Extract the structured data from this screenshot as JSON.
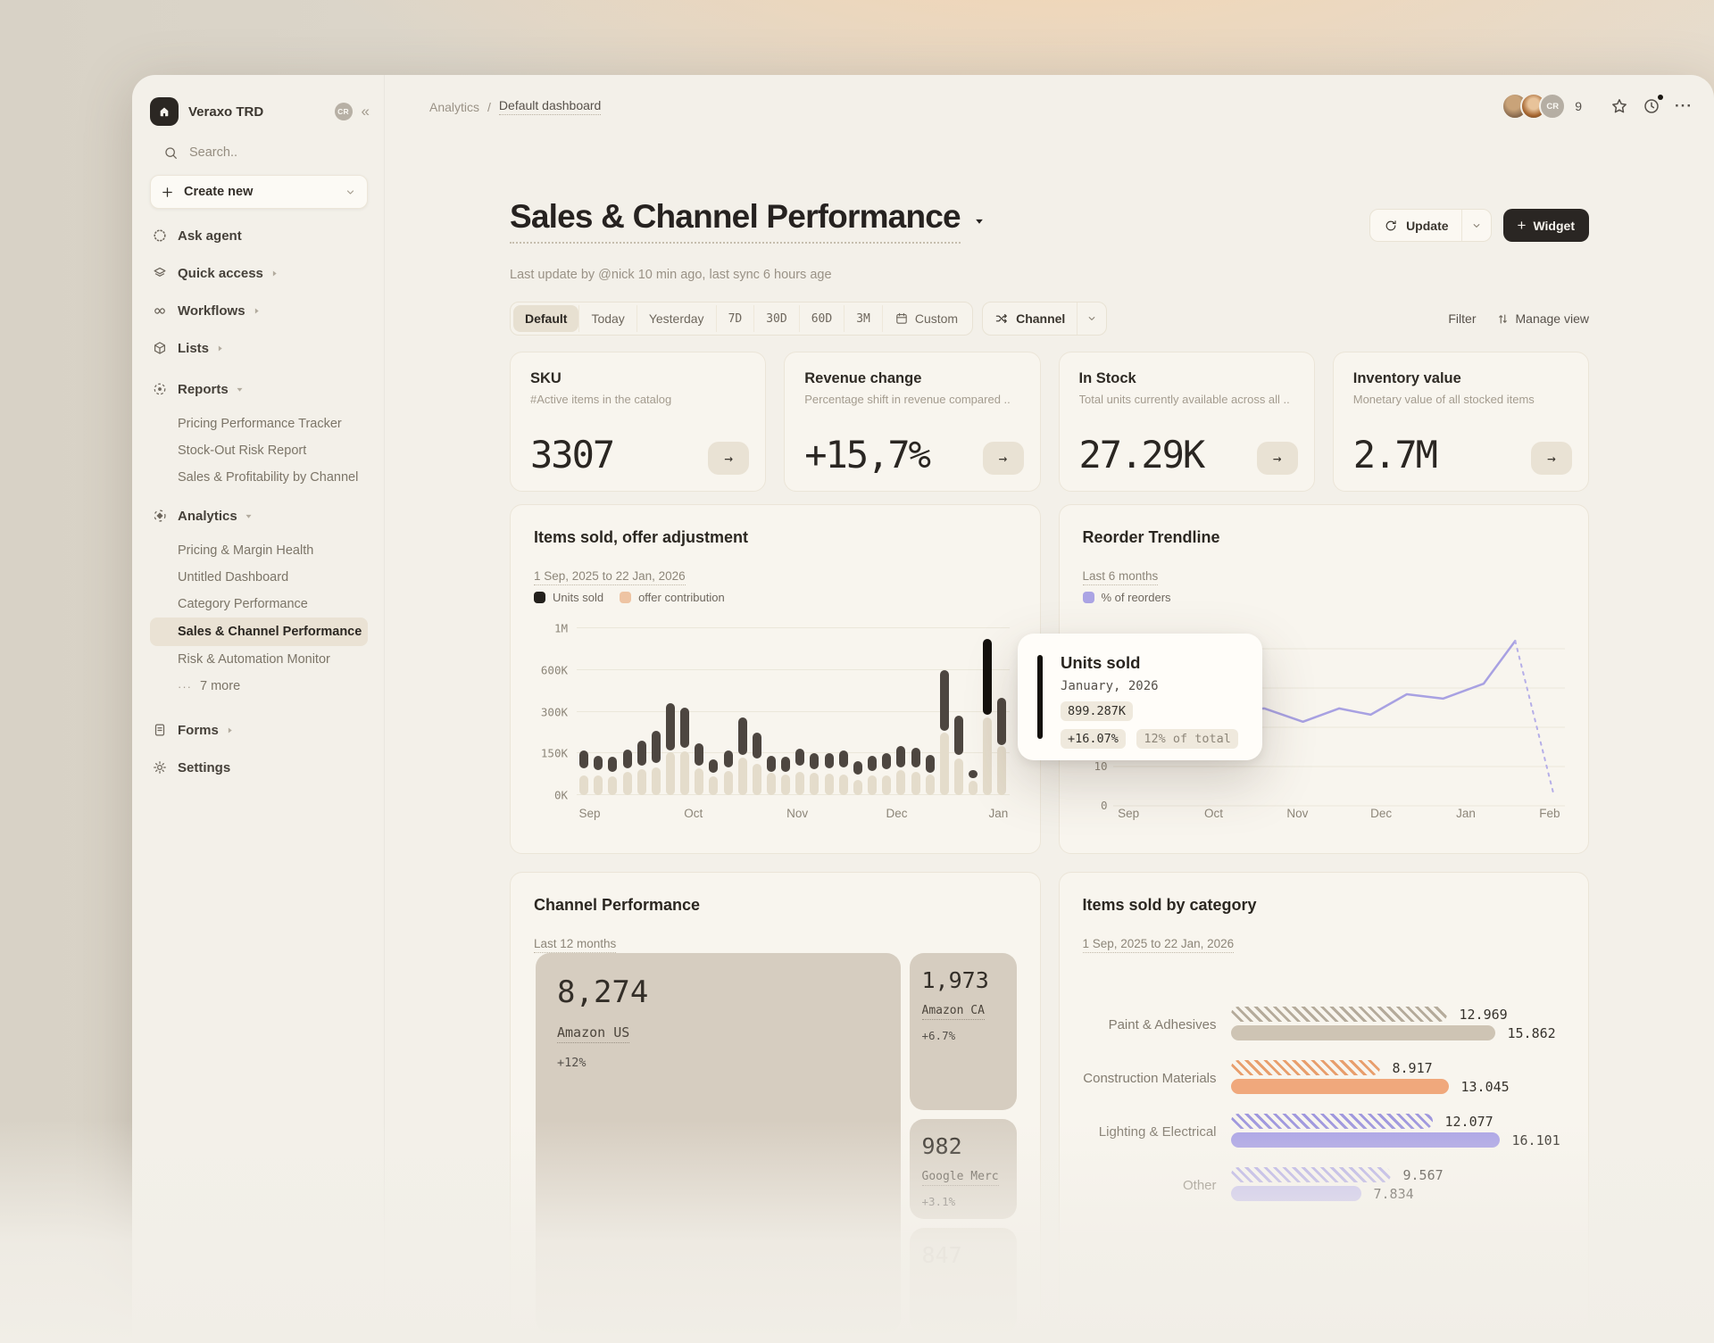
{
  "sidebar": {
    "workspace": "Veraxo TRD",
    "workspace_badge": "CR",
    "search_placeholder": "Search..",
    "create_new_label": "Create new",
    "items": [
      {
        "label": "Ask agent"
      },
      {
        "label": "Quick access"
      },
      {
        "label": "Workflows"
      },
      {
        "label": "Lists"
      }
    ],
    "reports": {
      "label": "Reports",
      "children": [
        "Pricing Performance Tracker",
        "Stock-Out Risk Report",
        "Sales & Profitability by Channel"
      ]
    },
    "analytics": {
      "label": "Analytics",
      "children": [
        "Pricing & Margin Health",
        "Untitled Dashboard",
        "Category Performance",
        "Sales & Channel Performance",
        "Risk & Automation Monitor"
      ],
      "more_label": "7 more"
    },
    "forms_label": "Forms",
    "settings_label": "Settings"
  },
  "header": {
    "breadcrumb": {
      "section": "Analytics",
      "page": "Default dashboard"
    },
    "collaborator_badge": "CR",
    "collaborators_count": "9"
  },
  "page": {
    "title": "Sales & Channel Performance",
    "subtitle": "Last update by @nick 10 min ago, last sync 6 hours age",
    "update_label": "Update",
    "widget_label": "Widget"
  },
  "filters": {
    "tabs": [
      {
        "label": "Default"
      },
      {
        "label": "Today"
      },
      {
        "label": "Yesterday"
      },
      {
        "label": "7D"
      },
      {
        "label": "30D"
      },
      {
        "label": "60D"
      },
      {
        "label": "3M"
      }
    ],
    "custom_label": "Custom",
    "channel_label": "Channel",
    "filter_label": "Filter",
    "manage_view_label": "Manage view"
  },
  "kpis": [
    {
      "title": "SKU",
      "desc": "#Active items in the catalog",
      "value": "3307"
    },
    {
      "title": "Revenue change",
      "desc": "Percentage shift in revenue compared ..",
      "value": "+15,7%"
    },
    {
      "title": "In Stock",
      "desc": "Total units currently available across all ..",
      "value": "27.29K"
    },
    {
      "title": "Inventory value",
      "desc": "Monetary value of all stocked items",
      "value": "2.7M"
    }
  ],
  "chart_data": {
    "items_sold": {
      "type": "bar",
      "title": "Items sold, offer adjustment",
      "range": "1 Sep, 2025 to 22 Jan, 2026",
      "legend": [
        {
          "label": "Units sold",
          "color": "#23201c"
        },
        {
          "label": "offer contribution",
          "color": "#eec4a3"
        }
      ],
      "y_ticks": [
        "1M",
        "600K",
        "300K",
        "150K",
        "0K"
      ],
      "y_scale_k": [
        0,
        150,
        300,
        600,
        1000
      ],
      "x_ticks": [
        {
          "label": "Sep",
          "pos": 3
        },
        {
          "label": "Oct",
          "pos": 27
        },
        {
          "label": "Nov",
          "pos": 51
        },
        {
          "label": "Dec",
          "pos": 74
        },
        {
          "label": "Jan",
          "pos": 97.5
        }
      ],
      "bars_k": [
        [
          95,
          160,
          70
        ],
        [
          90,
          142,
          72
        ],
        [
          85,
          138,
          66
        ],
        [
          95,
          165,
          85
        ],
        [
          105,
          195,
          92
        ],
        [
          115,
          230,
          100
        ],
        [
          160,
          360,
          155
        ],
        [
          170,
          330,
          158
        ],
        [
          105,
          185,
          95
        ],
        [
          80,
          130,
          68
        ],
        [
          100,
          162,
          88
        ],
        [
          145,
          280,
          135
        ],
        [
          130,
          225,
          112
        ],
        [
          85,
          142,
          80
        ],
        [
          82,
          138,
          75
        ],
        [
          105,
          168,
          85
        ],
        [
          92,
          152,
          80
        ],
        [
          95,
          152,
          78
        ],
        [
          98,
          160,
          75
        ],
        [
          75,
          122,
          55
        ],
        [
          88,
          142,
          70
        ],
        [
          92,
          150,
          72
        ],
        [
          100,
          178,
          90
        ],
        [
          98,
          170,
          85
        ],
        [
          80,
          145,
          75
        ],
        [
          230,
          600,
          225
        ],
        [
          145,
          285,
          130
        ],
        [
          62,
          90,
          50
        ],
        [
          290,
          900,
          280
        ],
        [
          180,
          400,
          175
        ]
      ],
      "highlight_index": 28,
      "tooltip": {
        "series": "Units sold",
        "period": "January, 2026",
        "value": "899.287K",
        "delta": "+16.07%",
        "share": "12% of total"
      }
    },
    "reorder": {
      "type": "line",
      "title": "Reorder Trendline",
      "range": "Last 6 months",
      "legend": [
        {
          "label": "% of reorders",
          "color": "#aba4e4"
        }
      ],
      "y_ticks": [
        "40",
        "30",
        "20",
        "10",
        "0"
      ],
      "y_max": 40,
      "x_ticks": [
        {
          "label": "Sep",
          "pos": 3.5
        },
        {
          "label": "Oct",
          "pos": 22.4
        },
        {
          "label": "Nov",
          "pos": 41
        },
        {
          "label": "Dec",
          "pos": 59.6
        },
        {
          "label": "Jan",
          "pos": 78.4
        },
        {
          "label": "Feb",
          "pos": 97
        }
      ],
      "solid_points": [
        [
          0,
          25.5
        ],
        [
          8,
          24.5
        ],
        [
          16,
          23.2
        ],
        [
          25,
          24.2
        ],
        [
          33.5,
          24.8
        ],
        [
          42,
          21.4
        ],
        [
          50,
          24.8
        ],
        [
          57,
          23.2
        ],
        [
          65,
          28.4
        ],
        [
          73,
          27.3
        ],
        [
          82,
          31.1
        ],
        [
          89,
          42
        ]
      ],
      "forecast_points": [
        [
          89,
          42
        ],
        [
          97.5,
          3
        ]
      ]
    },
    "channel_treemap": {
      "type": "treemap",
      "title": "Channel Performance",
      "range": "Last 12 months",
      "tiles": [
        {
          "value": "8,274",
          "label": "Amazon US",
          "delta": "+12%"
        },
        {
          "value": "1,973",
          "label": "Amazon CA",
          "delta": "+6.7%"
        },
        {
          "value": "982",
          "label": "Google Merc",
          "delta": "+3.1%"
        },
        {
          "value": "847",
          "label": "",
          "delta": ""
        }
      ]
    },
    "category": {
      "type": "bar",
      "title": "Items sold by category",
      "range": "1 Sep, 2025 to 22 Jan, 2026",
      "max_value": 16.6,
      "rows": [
        {
          "label": "Paint & Adhesives",
          "hatched": 12.969,
          "solid": 15.862,
          "hatched_label": "12.969",
          "solid_label": "15.862",
          "solid_color": "#cec4b4",
          "hatch_color": "#b5ab9b"
        },
        {
          "label": "Construction Materials",
          "hatched": 8.917,
          "solid": 13.045,
          "hatched_label": "8.917",
          "solid_label": "13.045",
          "solid_color": "#f0a87c",
          "hatch_color": "#e89e6c"
        },
        {
          "label": "Lighting & Electrical",
          "hatched": 12.077,
          "solid": 16.101,
          "hatched_label": "12.077",
          "solid_label": "16.101",
          "solid_color": "#aaa2e6",
          "hatch_color": "#a098de"
        },
        {
          "label": "Other",
          "hatched": 9.567,
          "solid": 7.834,
          "hatched_label": "9.567",
          "solid_label": "7.834",
          "solid_color": "#c2bcee",
          "hatch_color": "#b2abe6"
        }
      ]
    }
  }
}
